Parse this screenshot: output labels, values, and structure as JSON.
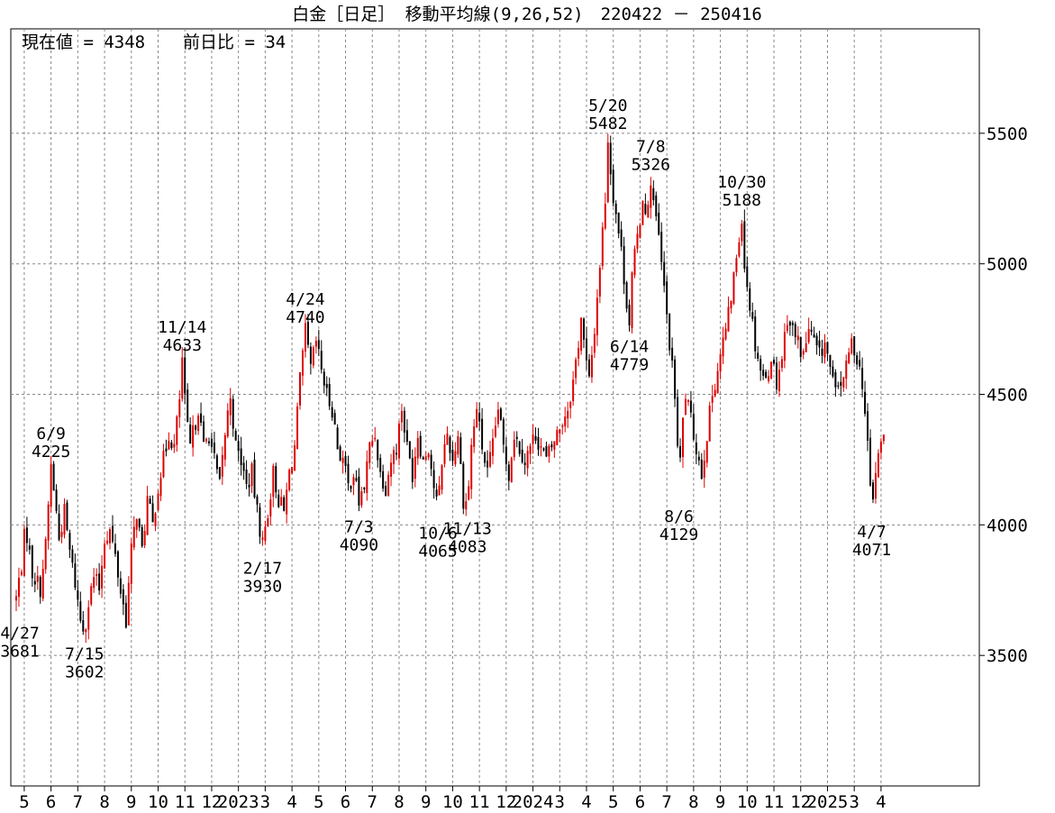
{
  "chart_data": {
    "type": "candlestick",
    "title": "白金［日足］ 移動平均線(9,26,52)　220422 － 250416",
    "info": {
      "current_label": "現在値 = 4348",
      "change_label": "前日比 = 34"
    },
    "ylim": [
      3000,
      5900
    ],
    "yticks": [
      3500,
      4000,
      4500,
      5000,
      5500
    ],
    "grid": true,
    "x_range": [
      0,
      35.5
    ],
    "xticks": [
      {
        "label": "5",
        "x": 0.3
      },
      {
        "label": "6",
        "x": 1.3
      },
      {
        "label": "7",
        "x": 2.3
      },
      {
        "label": "8",
        "x": 3.3
      },
      {
        "label": "9",
        "x": 4.3
      },
      {
        "label": "10",
        "x": 5.3
      },
      {
        "label": "11",
        "x": 6.3
      },
      {
        "label": "12",
        "x": 7.3
      },
      {
        "label": "2023",
        "x": 8.3
      },
      {
        "label": "3",
        "x": 9.3
      },
      {
        "label": "4",
        "x": 10.3
      },
      {
        "label": "5",
        "x": 11.3
      },
      {
        "label": "6",
        "x": 12.3
      },
      {
        "label": "7",
        "x": 13.3
      },
      {
        "label": "8",
        "x": 14.3
      },
      {
        "label": "9",
        "x": 15.3
      },
      {
        "label": "10",
        "x": 16.3
      },
      {
        "label": "11",
        "x": 17.3
      },
      {
        "label": "12",
        "x": 18.3
      },
      {
        "label": "2024",
        "x": 19.3
      },
      {
        "label": "3",
        "x": 20.3
      },
      {
        "label": "4",
        "x": 21.3
      },
      {
        "label": "5",
        "x": 22.3
      },
      {
        "label": "6",
        "x": 23.3
      },
      {
        "label": "7",
        "x": 24.3
      },
      {
        "label": "8",
        "x": 25.3
      },
      {
        "label": "9",
        "x": 26.3
      },
      {
        "label": "10",
        "x": 27.3
      },
      {
        "label": "11",
        "x": 28.3
      },
      {
        "label": "12",
        "x": 29.3
      },
      {
        "label": "2025",
        "x": 30.3
      },
      {
        "label": "3",
        "x": 31.3
      },
      {
        "label": "4",
        "x": 32.3
      }
    ],
    "series_path": [
      [
        0.0,
        3720
      ],
      [
        0.2,
        3850
      ],
      [
        0.35,
        4000
      ],
      [
        0.6,
        3820
      ],
      [
        0.9,
        3760
      ],
      [
        1.1,
        3920
      ],
      [
        1.3,
        4225
      ],
      [
        1.45,
        4100
      ],
      [
        1.6,
        3950
      ],
      [
        1.8,
        4050
      ],
      [
        2.0,
        3900
      ],
      [
        2.2,
        3780
      ],
      [
        2.4,
        3640
      ],
      [
        2.55,
        3602
      ],
      [
        2.7,
        3700
      ],
      [
        2.9,
        3800
      ],
      [
        3.1,
        3760
      ],
      [
        3.3,
        3950
      ],
      [
        3.5,
        3980
      ],
      [
        3.7,
        3880
      ],
      [
        3.9,
        3750
      ],
      [
        4.1,
        3640
      ],
      [
        4.3,
        3900
      ],
      [
        4.5,
        4050
      ],
      [
        4.7,
        3900
      ],
      [
        4.9,
        4100
      ],
      [
        5.1,
        4000
      ],
      [
        5.3,
        4150
      ],
      [
        5.5,
        4250
      ],
      [
        5.7,
        4350
      ],
      [
        5.9,
        4300
      ],
      [
        6.1,
        4480
      ],
      [
        6.2,
        4633
      ],
      [
        6.35,
        4400
      ],
      [
        6.5,
        4300
      ],
      [
        6.8,
        4450
      ],
      [
        7.0,
        4300
      ],
      [
        7.2,
        4350
      ],
      [
        7.4,
        4250
      ],
      [
        7.6,
        4150
      ],
      [
        7.8,
        4350
      ],
      [
        8.0,
        4500
      ],
      [
        8.2,
        4300
      ],
      [
        8.4,
        4250
      ],
      [
        8.6,
        4150
      ],
      [
        8.8,
        4200
      ],
      [
        9.0,
        4050
      ],
      [
        9.2,
        3930
      ],
      [
        9.4,
        4050
      ],
      [
        9.6,
        4200
      ],
      [
        9.8,
        4100
      ],
      [
        10.0,
        4050
      ],
      [
        10.2,
        4200
      ],
      [
        10.4,
        4300
      ],
      [
        10.6,
        4550
      ],
      [
        10.8,
        4740
      ],
      [
        11.0,
        4600
      ],
      [
        11.2,
        4700
      ],
      [
        11.4,
        4600
      ],
      [
        11.6,
        4500
      ],
      [
        11.8,
        4450
      ],
      [
        12.0,
        4300
      ],
      [
        12.2,
        4250
      ],
      [
        12.4,
        4150
      ],
      [
        12.6,
        4200
      ],
      [
        12.8,
        4090
      ],
      [
        13.0,
        4150
      ],
      [
        13.2,
        4300
      ],
      [
        13.4,
        4350
      ],
      [
        13.6,
        4200
      ],
      [
        13.8,
        4150
      ],
      [
        14.0,
        4250
      ],
      [
        14.2,
        4300
      ],
      [
        14.4,
        4450
      ],
      [
        14.6,
        4300
      ],
      [
        14.8,
        4200
      ],
      [
        15.0,
        4350
      ],
      [
        15.2,
        4250
      ],
      [
        15.4,
        4300
      ],
      [
        15.6,
        4150
      ],
      [
        15.75,
        4065
      ],
      [
        15.9,
        4250
      ],
      [
        16.1,
        4350
      ],
      [
        16.3,
        4250
      ],
      [
        16.5,
        4350
      ],
      [
        16.7,
        4100
      ],
      [
        16.85,
        4083
      ],
      [
        17.0,
        4300
      ],
      [
        17.2,
        4450
      ],
      [
        17.4,
        4300
      ],
      [
        17.6,
        4200
      ],
      [
        17.8,
        4300
      ],
      [
        18.0,
        4450
      ],
      [
        18.2,
        4300
      ],
      [
        18.4,
        4200
      ],
      [
        18.6,
        4350
      ],
      [
        18.8,
        4300
      ],
      [
        19.0,
        4250
      ],
      [
        19.2,
        4300
      ],
      [
        19.4,
        4350
      ],
      [
        19.6,
        4300
      ],
      [
        19.8,
        4250
      ],
      [
        20.0,
        4300
      ],
      [
        20.2,
        4350
      ],
      [
        20.4,
        4400
      ],
      [
        20.6,
        4450
      ],
      [
        20.8,
        4550
      ],
      [
        21.0,
        4700
      ],
      [
        21.1,
        4800
      ],
      [
        21.25,
        4650
      ],
      [
        21.4,
        4550
      ],
      [
        21.6,
        4750
      ],
      [
        21.8,
        5000
      ],
      [
        22.0,
        5250
      ],
      [
        22.1,
        5482
      ],
      [
        22.25,
        5300
      ],
      [
        22.4,
        5200
      ],
      [
        22.6,
        5050
      ],
      [
        22.75,
        4900
      ],
      [
        22.9,
        4779
      ],
      [
        23.0,
        4950
      ],
      [
        23.2,
        5100
      ],
      [
        23.4,
        5250
      ],
      [
        23.6,
        5200
      ],
      [
        23.7,
        5326
      ],
      [
        23.85,
        5200
      ],
      [
        24.0,
        5100
      ],
      [
        24.2,
        4900
      ],
      [
        24.4,
        4700
      ],
      [
        24.5,
        4600
      ],
      [
        24.6,
        4500
      ],
      [
        24.7,
        4300
      ],
      [
        24.75,
        4129
      ],
      [
        24.85,
        4350
      ],
      [
        25.0,
        4500
      ],
      [
        25.2,
        4400
      ],
      [
        25.4,
        4300
      ],
      [
        25.6,
        4200
      ],
      [
        25.8,
        4350
      ],
      [
        26.0,
        4500
      ],
      [
        26.2,
        4600
      ],
      [
        26.4,
        4700
      ],
      [
        26.6,
        4800
      ],
      [
        26.8,
        4950
      ],
      [
        27.0,
        5100
      ],
      [
        27.1,
        5188
      ],
      [
        27.2,
        5000
      ],
      [
        27.4,
        4850
      ],
      [
        27.6,
        4700
      ],
      [
        27.8,
        4600
      ],
      [
        28.0,
        4550
      ],
      [
        28.2,
        4650
      ],
      [
        28.4,
        4550
      ],
      [
        28.6,
        4650
      ],
      [
        28.8,
        4800
      ],
      [
        29.0,
        4750
      ],
      [
        29.2,
        4700
      ],
      [
        29.4,
        4650
      ],
      [
        29.6,
        4750
      ],
      [
        29.8,
        4700
      ],
      [
        30.0,
        4650
      ],
      [
        30.2,
        4700
      ],
      [
        30.4,
        4600
      ],
      [
        30.6,
        4500
      ],
      [
        30.8,
        4550
      ],
      [
        31.0,
        4600
      ],
      [
        31.2,
        4700
      ],
      [
        31.4,
        4650
      ],
      [
        31.6,
        4550
      ],
      [
        31.8,
        4300
      ],
      [
        31.95,
        4071
      ],
      [
        32.1,
        4200
      ],
      [
        32.3,
        4314
      ],
      [
        32.45,
        4348
      ]
    ],
    "annotations": [
      {
        "date": "4/27",
        "value": "3681",
        "x": 0.0,
        "y": 3681,
        "pos": "below"
      },
      {
        "date": "6/9",
        "value": "4225",
        "x": 1.3,
        "y": 4225,
        "pos": "above"
      },
      {
        "date": "7/15",
        "value": "3602",
        "x": 2.55,
        "y": 3602,
        "pos": "below"
      },
      {
        "date": "11/14",
        "value": "4633",
        "x": 6.2,
        "y": 4633,
        "pos": "above"
      },
      {
        "date": "2/17",
        "value": "3930",
        "x": 9.2,
        "y": 3930,
        "pos": "below"
      },
      {
        "date": "4/24",
        "value": "4740",
        "x": 10.8,
        "y": 4740,
        "pos": "above"
      },
      {
        "date": "7/3",
        "value": "4090",
        "x": 12.8,
        "y": 4090,
        "pos": "below"
      },
      {
        "date": "10/6",
        "value": "4065",
        "x": 15.75,
        "y": 4065,
        "pos": "below"
      },
      {
        "date": "11/13",
        "value": "4083",
        "x": 16.85,
        "y": 4083,
        "pos": "below"
      },
      {
        "date": "5/20",
        "value": "5482",
        "x": 22.1,
        "y": 5482,
        "pos": "above"
      },
      {
        "date": "6/14",
        "value": "4779",
        "x": 22.9,
        "y": 4779,
        "pos": "below"
      },
      {
        "date": "7/8",
        "value": "5326",
        "x": 23.7,
        "y": 5326,
        "pos": "above"
      },
      {
        "date": "8/6",
        "value": "4129",
        "x": 24.75,
        "y": 4129,
        "pos": "below"
      },
      {
        "date": "10/30",
        "value": "5188",
        "x": 27.1,
        "y": 5188,
        "pos": "above"
      },
      {
        "date": "4/7",
        "value": "4071",
        "x": 31.95,
        "y": 4071,
        "pos": "below"
      }
    ],
    "colors": {
      "up": "#dd0000",
      "down": "#000000",
      "grid": "#888888",
      "frame": "#000000"
    }
  }
}
